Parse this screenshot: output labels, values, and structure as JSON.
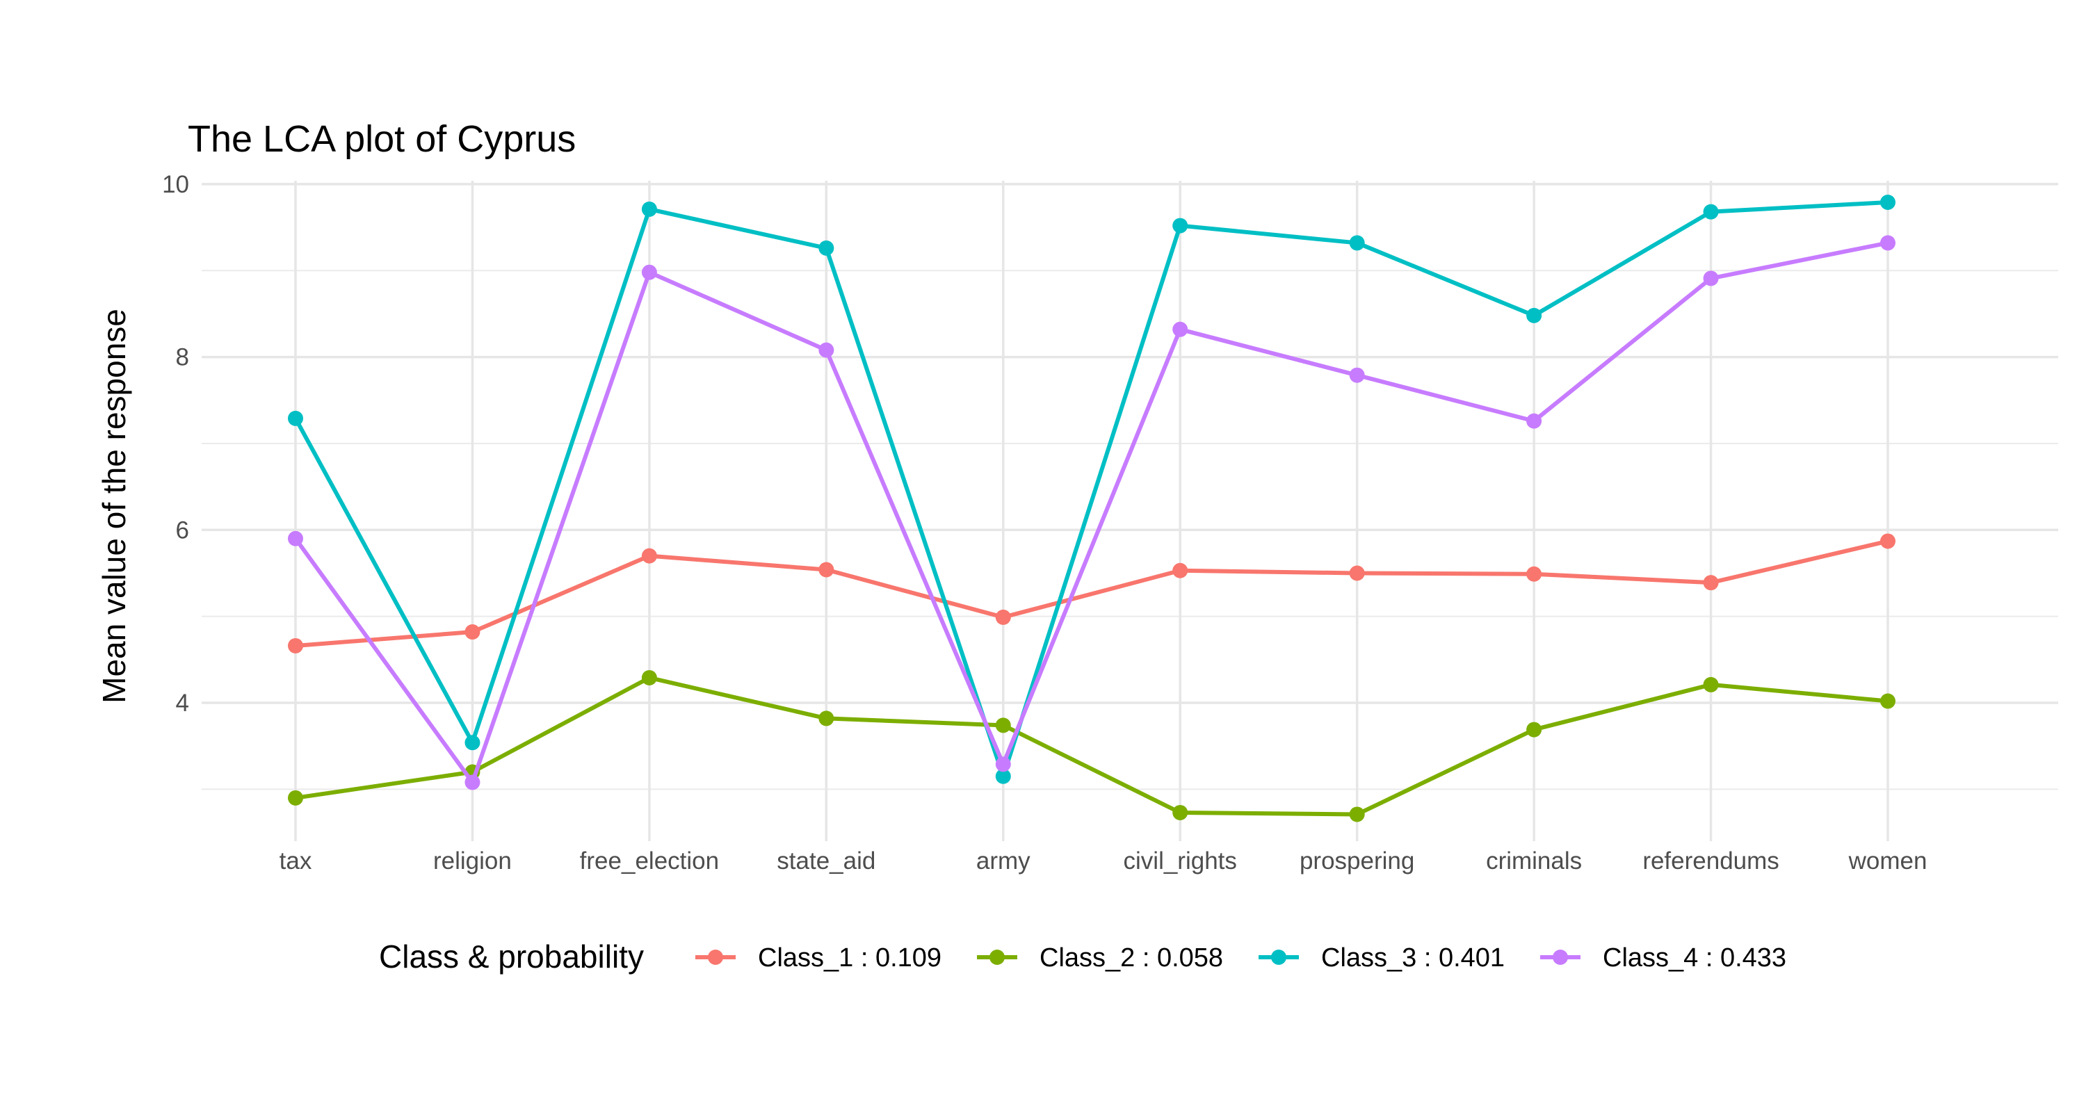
{
  "chart_data": {
    "type": "line",
    "title": "The LCA plot of Cyprus",
    "xlabel": "",
    "ylabel": "Mean value of the response",
    "categories": [
      "tax",
      "religion",
      "free_election",
      "state_aid",
      "army",
      "civil_rights",
      "prospering",
      "criminals",
      "referendums",
      "women"
    ],
    "ylim": [
      2.4,
      10.2
    ],
    "yticks": [
      4,
      6,
      8,
      10
    ],
    "ytick_labels": [
      "4",
      "6",
      "8",
      "10"
    ],
    "grid": true,
    "legend_title": "Class & probability",
    "legend_position": "bottom",
    "series": [
      {
        "name": "Class_1 : 0.109",
        "color": "#F8766D",
        "values": [
          4.66,
          4.82,
          5.7,
          5.54,
          4.99,
          5.53,
          5.5,
          5.49,
          5.39,
          5.87
        ]
      },
      {
        "name": "Class_2 : 0.058",
        "color": "#7CAE00",
        "values": [
          2.9,
          3.2,
          4.29,
          3.82,
          3.74,
          2.73,
          2.71,
          3.69,
          4.21,
          4.02
        ]
      },
      {
        "name": "Class_3 : 0.401",
        "color": "#00BFC4",
        "values": [
          7.29,
          3.54,
          9.71,
          9.26,
          3.15,
          9.52,
          9.32,
          8.48,
          9.68,
          9.79
        ]
      },
      {
        "name": "Class_4 : 0.433",
        "color": "#C77CFF",
        "values": [
          5.9,
          3.08,
          8.98,
          8.08,
          3.29,
          8.32,
          7.79,
          7.26,
          8.91,
          9.32
        ]
      }
    ]
  }
}
